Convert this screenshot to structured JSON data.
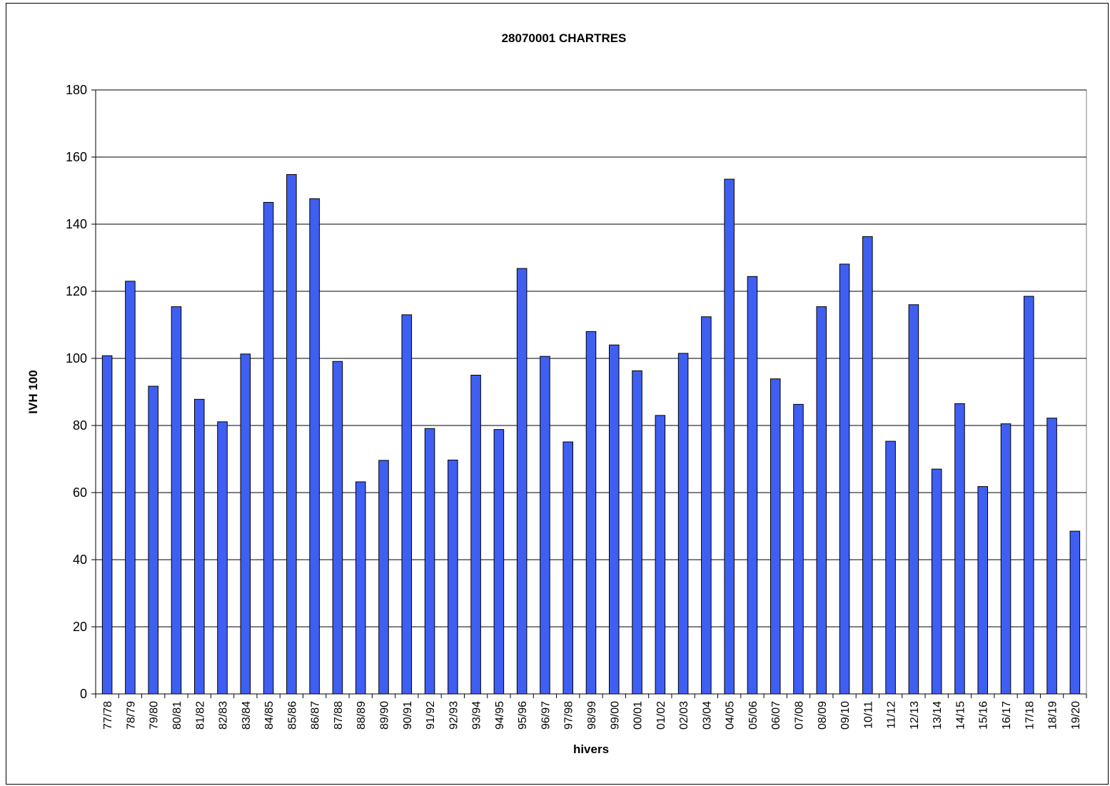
{
  "chart_data": {
    "type": "bar",
    "title": "28070001 CHARTRES",
    "xlabel": "hivers",
    "ylabel": "IVH 100",
    "ylim": [
      0,
      180
    ],
    "yticks": [
      0,
      20,
      40,
      60,
      80,
      100,
      120,
      140,
      160,
      180
    ],
    "grid": true,
    "bar_color": "#3f5ff2",
    "categories": [
      "77/78",
      "78/79",
      "79/80",
      "80/81",
      "81/82",
      "82/83",
      "83/84",
      "84/85",
      "85/86",
      "86/87",
      "87/88",
      "88/89",
      "89/90",
      "90/91",
      "91/92",
      "92/93",
      "93/94",
      "94/95",
      "95/96",
      "96/97",
      "97/98",
      "98/99",
      "99/00",
      "00/01",
      "01/02",
      "02/03",
      "03/04",
      "04/05",
      "05/06",
      "06/07",
      "07/08",
      "08/09",
      "09/10",
      "10/11",
      "11/12",
      "12/13",
      "13/14",
      "14/15",
      "15/16",
      "16/17",
      "17/18",
      "18/19",
      "19/20"
    ],
    "values": [
      100.8,
      123,
      91.7,
      115.4,
      87.8,
      81.1,
      101.3,
      146.5,
      154.8,
      147.6,
      99.1,
      63.2,
      69.6,
      113,
      79.1,
      69.7,
      95,
      78.8,
      126.8,
      100.6,
      75.1,
      108,
      104,
      96.3,
      83,
      101.5,
      112.4,
      153.4,
      124.4,
      93.9,
      86.3,
      115.4,
      128.1,
      136.3,
      75.3,
      116,
      67,
      86.5,
      61.8,
      80.5,
      118.5,
      82.2,
      48.5
    ]
  }
}
